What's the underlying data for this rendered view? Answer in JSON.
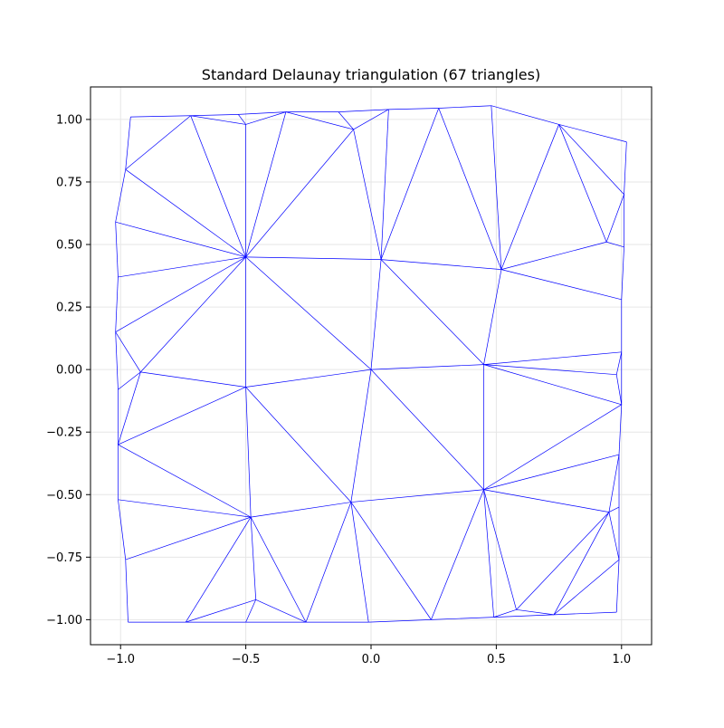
{
  "figure": {
    "title": "Standard Delaunay triangulation (67 triangles)"
  },
  "colors": {
    "edge": "#0000ff",
    "grid": "#e6e6e6",
    "axis": "#000000",
    "background": "#ffffff"
  },
  "chart_data": {
    "type": "triangulation",
    "title": "Standard Delaunay triangulation (67 triangles)",
    "xlabel": "",
    "ylabel": "",
    "xlim": [
      -1.12,
      1.12
    ],
    "ylim": [
      -1.1,
      1.13
    ],
    "grid": true,
    "x_ticks": [
      -1.0,
      -0.5,
      0.0,
      0.5,
      1.0
    ],
    "x_tick_labels": [
      "−1.0",
      "−0.5",
      "0.0",
      "0.5",
      "1.0"
    ],
    "y_ticks": [
      -1.0,
      -0.75,
      -0.5,
      -0.25,
      0.0,
      0.25,
      0.5,
      0.75,
      1.0
    ],
    "y_tick_labels": [
      "−1.00",
      "−0.75",
      "−0.50",
      "−0.25",
      "0.00",
      "0.25",
      "0.50",
      "0.75",
      "1.00"
    ],
    "triangle_count": 67,
    "points": [
      [
        -0.96,
        1.01
      ],
      [
        -0.72,
        1.015
      ],
      [
        -0.53,
        1.02
      ],
      [
        -0.5,
        0.98
      ],
      [
        -0.34,
        1.03
      ],
      [
        -0.13,
        1.03
      ],
      [
        -0.07,
        0.96
      ],
      [
        0.07,
        1.04
      ],
      [
        0.27,
        1.045
      ],
      [
        0.48,
        1.055
      ],
      [
        0.75,
        0.98
      ],
      [
        1.02,
        0.91
      ],
      [
        -0.98,
        0.8
      ],
      [
        -1.02,
        0.59
      ],
      [
        1.01,
        0.7
      ],
      [
        0.94,
        0.51
      ],
      [
        1.01,
        0.49
      ],
      [
        -0.5,
        0.45
      ],
      [
        0.04,
        0.44
      ],
      [
        0.52,
        0.4
      ],
      [
        -1.01,
        0.37
      ],
      [
        1.0,
        0.28
      ],
      [
        -1.02,
        0.15
      ],
      [
        1.0,
        0.07
      ],
      [
        -0.92,
        -0.01
      ],
      [
        0.0,
        0.0
      ],
      [
        0.45,
        0.02
      ],
      [
        0.98,
        -0.02
      ],
      [
        -1.01,
        -0.08
      ],
      [
        -0.5,
        -0.07
      ],
      [
        1.0,
        -0.14
      ],
      [
        -1.01,
        -0.3
      ],
      [
        0.99,
        -0.34
      ],
      [
        -1.01,
        -0.52
      ],
      [
        -0.08,
        -0.53
      ],
      [
        0.45,
        -0.48
      ],
      [
        -0.48,
        -0.59
      ],
      [
        0.95,
        -0.57
      ],
      [
        0.99,
        -0.55
      ],
      [
        -0.98,
        -0.76
      ],
      [
        0.99,
        -0.76
      ],
      [
        -0.46,
        -0.92
      ],
      [
        0.58,
        -0.96
      ],
      [
        0.73,
        -0.98
      ],
      [
        0.98,
        -0.97
      ],
      [
        -0.97,
        -1.01
      ],
      [
        -0.74,
        -1.01
      ],
      [
        -0.5,
        -1.01
      ],
      [
        -0.26,
        -1.01
      ],
      [
        -0.01,
        -1.01
      ],
      [
        0.24,
        -1.0
      ],
      [
        0.49,
        -0.99
      ]
    ],
    "edges": [
      [
        0,
        1
      ],
      [
        1,
        2
      ],
      [
        2,
        3
      ],
      [
        1,
        3
      ],
      [
        2,
        4
      ],
      [
        3,
        4
      ],
      [
        4,
        5
      ],
      [
        5,
        6
      ],
      [
        4,
        6
      ],
      [
        5,
        7
      ],
      [
        6,
        7
      ],
      [
        7,
        8
      ],
      [
        8,
        9
      ],
      [
        9,
        10
      ],
      [
        10,
        11
      ],
      [
        0,
        12
      ],
      [
        12,
        13
      ],
      [
        13,
        20
      ],
      [
        20,
        22
      ],
      [
        22,
        28
      ],
      [
        28,
        31
      ],
      [
        31,
        33
      ],
      [
        33,
        39
      ],
      [
        39,
        45
      ],
      [
        11,
        14
      ],
      [
        14,
        16
      ],
      [
        16,
        21
      ],
      [
        21,
        23
      ],
      [
        23,
        30
      ],
      [
        30,
        32
      ],
      [
        32,
        38
      ],
      [
        38,
        40
      ],
      [
        40,
        44
      ],
      [
        45,
        46
      ],
      [
        46,
        47
      ],
      [
        47,
        48
      ],
      [
        48,
        49
      ],
      [
        49,
        50
      ],
      [
        50,
        51
      ],
      [
        51,
        43
      ],
      [
        43,
        44
      ],
      [
        12,
        1
      ],
      [
        12,
        17
      ],
      [
        1,
        17
      ],
      [
        3,
        17
      ],
      [
        4,
        17
      ],
      [
        13,
        17
      ],
      [
        20,
        17
      ],
      [
        22,
        17
      ],
      [
        17,
        6
      ],
      [
        6,
        18
      ],
      [
        18,
        7
      ],
      [
        8,
        18
      ],
      [
        17,
        18
      ],
      [
        8,
        19
      ],
      [
        18,
        19
      ],
      [
        9,
        19
      ],
      [
        10,
        19
      ],
      [
        10,
        15
      ],
      [
        10,
        14
      ],
      [
        14,
        15
      ],
      [
        15,
        16
      ],
      [
        15,
        19
      ],
      [
        19,
        21
      ],
      [
        17,
        25
      ],
      [
        18,
        25
      ],
      [
        25,
        26
      ],
      [
        18,
        26
      ],
      [
        19,
        26
      ],
      [
        22,
        24
      ],
      [
        17,
        24
      ],
      [
        24,
        29
      ],
      [
        17,
        29
      ],
      [
        25,
        29
      ],
      [
        28,
        24
      ],
      [
        31,
        24
      ],
      [
        31,
        29
      ],
      [
        29,
        34
      ],
      [
        25,
        34
      ],
      [
        34,
        35
      ],
      [
        25,
        35
      ],
      [
        26,
        35
      ],
      [
        26,
        23
      ],
      [
        26,
        27
      ],
      [
        27,
        23
      ],
      [
        27,
        30
      ],
      [
        26,
        30
      ],
      [
        30,
        35
      ],
      [
        31,
        36
      ],
      [
        29,
        36
      ],
      [
        33,
        36
      ],
      [
        39,
        36
      ],
      [
        34,
        36
      ],
      [
        35,
        32
      ],
      [
        35,
        37
      ],
      [
        32,
        37
      ],
      [
        37,
        38
      ],
      [
        37,
        40
      ],
      [
        36,
        46
      ],
      [
        36,
        41
      ],
      [
        41,
        46
      ],
      [
        41,
        47
      ],
      [
        41,
        48
      ],
      [
        36,
        48
      ],
      [
        34,
        48
      ],
      [
        34,
        49
      ],
      [
        34,
        50
      ],
      [
        35,
        50
      ],
      [
        35,
        51
      ],
      [
        35,
        42
      ],
      [
        42,
        51
      ],
      [
        42,
        43
      ],
      [
        42,
        37
      ],
      [
        37,
        43
      ],
      [
        40,
        43
      ]
    ]
  }
}
